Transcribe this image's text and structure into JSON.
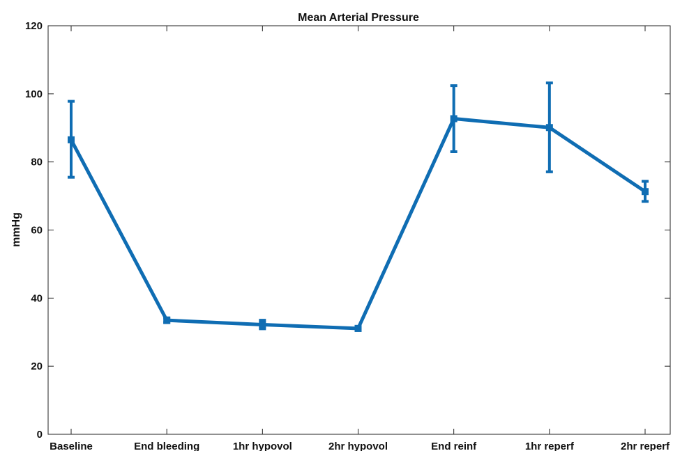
{
  "chart_data": {
    "type": "line",
    "title": "Mean Arterial Pressure",
    "xlabel": "",
    "ylabel": "mmHg",
    "categories": [
      "Baseline",
      "End bleeding",
      "1hr hypovol",
      "2hr hypovol",
      "End reinf",
      "1hr reperf",
      "2hr reperf"
    ],
    "series": [
      {
        "values": [
          86.5,
          33.5,
          32.2,
          31.1,
          92.7,
          90.1,
          71.3
        ],
        "error_low": [
          75.5,
          32.8,
          31.0,
          30.5,
          83.0,
          77.1,
          68.4
        ],
        "error_high": [
          97.8,
          34.2,
          33.5,
          31.7,
          102.4,
          103.2,
          74.3
        ]
      }
    ],
    "ylim": [
      0,
      120
    ],
    "yticks": [
      0,
      20,
      40,
      60,
      80,
      100,
      120
    ],
    "grid": false,
    "color": "#0f6db3"
  }
}
